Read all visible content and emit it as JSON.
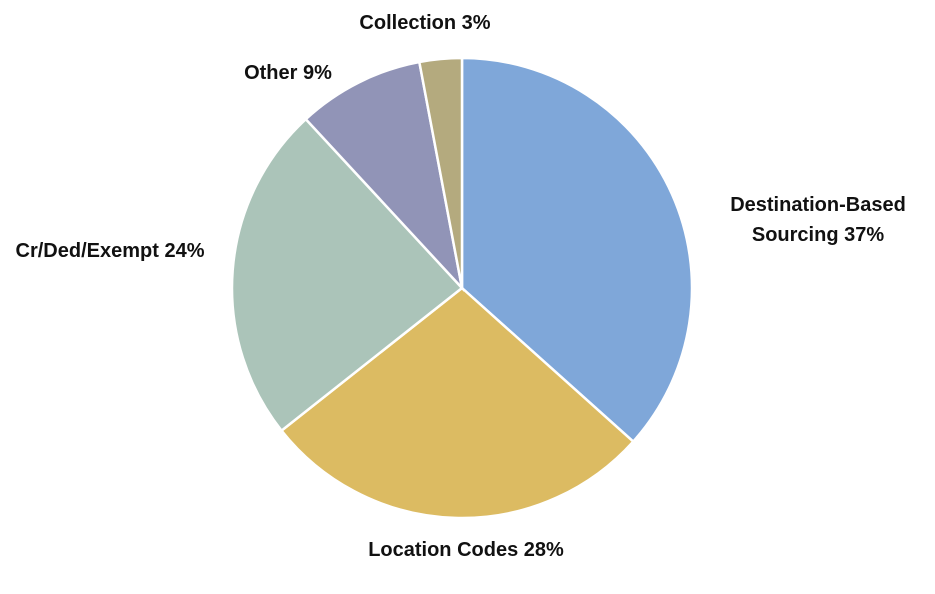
{
  "chart_data": {
    "type": "pie",
    "categories": [
      "Destination-Based Sourcing",
      "Location Codes",
      "Cr/Ded/Exempt",
      "Other",
      "Collection"
    ],
    "values": [
      37,
      28,
      24,
      9,
      3
    ],
    "value_labels": [
      "37%",
      "28%",
      "24%",
      "9%",
      "3%"
    ],
    "colors": [
      "#7fa7d9",
      "#dcbb62",
      "#abc4b9",
      "#9194b7",
      "#b4aa7e"
    ]
  }
}
